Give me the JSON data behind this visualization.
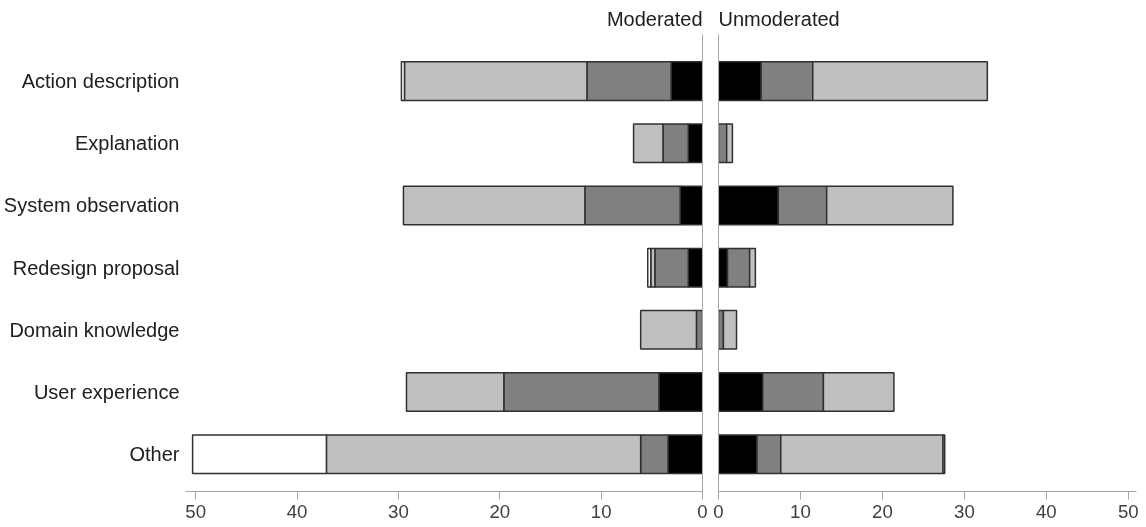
{
  "chart_data": [
    {
      "type": "bar",
      "orientation": "horizontal",
      "stacked": true,
      "title": "Moderated",
      "categories": [
        "Action description",
        "Explanation",
        "System observation",
        "Redesign proposal",
        "Domain knowledge",
        "User experience",
        "Other"
      ],
      "xlim": [
        51,
        0
      ],
      "xticks": [
        50,
        40,
        30,
        20,
        10,
        0
      ],
      "series": [
        {
          "color": "#000000",
          "values": [
            3.1,
            1.4,
            2.2,
            1.4,
            0,
            4.3,
            3.4
          ]
        },
        {
          "color": "#808080",
          "values": [
            8.3,
            2.5,
            9.4,
            3.3,
            0.6,
            15.3,
            2.7
          ]
        },
        {
          "color": "#c0c0c0",
          "values": [
            18.0,
            2.9,
            17.9,
            0.4,
            5.5,
            9.6,
            31.0
          ]
        },
        {
          "color": "#ffffff",
          "values": [
            0.3,
            0,
            0,
            0.3,
            0,
            0,
            13.2
          ]
        }
      ]
    },
    {
      "type": "bar",
      "orientation": "horizontal",
      "stacked": true,
      "title": "Unmoderated",
      "categories": [
        null,
        null,
        null,
        null,
        null,
        null,
        null
      ],
      "xlim": [
        0,
        51
      ],
      "xticks": [
        0,
        10,
        20,
        30,
        40,
        50
      ],
      "tick_labels": "x",
      "series": [
        {
          "color": "#000000",
          "values": [
            5.2,
            0,
            7.3,
            1.1,
            0,
            5.4,
            4.7
          ]
        },
        {
          "color": "#808080",
          "values": [
            6.3,
            1.0,
            5.9,
            2.7,
            0.6,
            7.4,
            2.9
          ]
        },
        {
          "color": "#c0c0c0",
          "values": [
            21.3,
            0.7,
            15.4,
            0.7,
            1.6,
            8.6,
            19.8
          ]
        },
        {
          "color": "#ffffff",
          "values": [
            0,
            0,
            0,
            0,
            0,
            0,
            0.2
          ]
        }
      ]
    }
  ]
}
